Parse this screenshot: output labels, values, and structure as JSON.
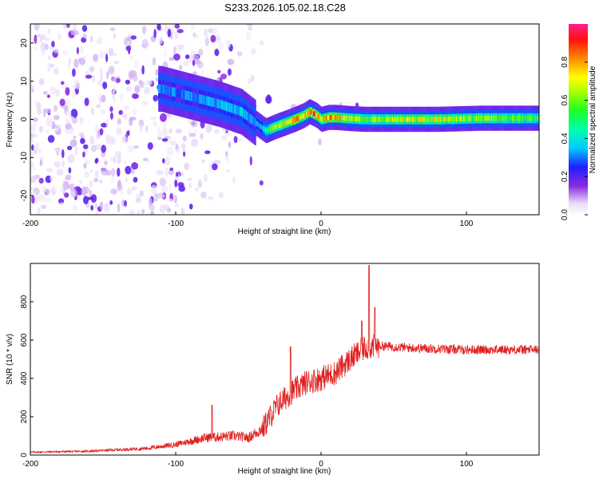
{
  "title": "S233.2026.105.02.18.C28",
  "chart_data": [
    {
      "type": "heatmap",
      "xlabel": "Height of straight line (km)",
      "ylabel": "Frequency (Hz)",
      "xlim": [
        -200,
        150
      ],
      "ylim": [
        -25,
        25
      ],
      "xticks": [
        -200,
        -100,
        0,
        100
      ],
      "yticks": [
        20,
        10,
        0,
        -10,
        -20
      ],
      "colorbar": {
        "label": "Normalized spectral amplitude",
        "range": [
          0,
          1
        ],
        "ticks": [
          0.0,
          0.2,
          0.4,
          0.6,
          0.8
        ]
      },
      "ridge": {
        "x": [
          -110,
          -90,
          -70,
          -55,
          -45,
          -38,
          -32,
          -25,
          -18,
          -12,
          -8,
          -3,
          0,
          5,
          10,
          20,
          30,
          50,
          80,
          110,
          150
        ],
        "freq": [
          8,
          6,
          4,
          2,
          -1,
          -3,
          -2,
          -1,
          0,
          1,
          2,
          1,
          0,
          0.5,
          0.5,
          0.2,
          0,
          0,
          0,
          0.3,
          0.3
        ],
        "amplitude": [
          0.3,
          0.3,
          0.35,
          0.35,
          0.3,
          0.45,
          0.6,
          0.7,
          0.8,
          0.75,
          0.85,
          0.8,
          0.7,
          0.8,
          0.75,
          0.65,
          0.6,
          0.65,
          0.7,
          0.6,
          0.55
        ]
      }
    },
    {
      "type": "line",
      "xlabel": "Height of straight line (km)",
      "ylabel": "SNR (10 * v/v)",
      "xlim": [
        -200,
        150
      ],
      "ylim": [
        0,
        1000
      ],
      "xticks": [
        -200,
        -100,
        0,
        100
      ],
      "yticks": [
        0,
        200,
        400,
        600,
        800
      ],
      "color": "#e02020",
      "envelope": {
        "x": [
          -200,
          -160,
          -120,
          -100,
          -80,
          -60,
          -50,
          -40,
          -30,
          -20,
          -10,
          0,
          10,
          20,
          30,
          40,
          60,
          100,
          150
        ],
        "snr": [
          15,
          20,
          35,
          55,
          90,
          100,
          90,
          140,
          260,
          330,
          380,
          400,
          430,
          500,
          560,
          570,
          560,
          550,
          550
        ]
      },
      "spikes": [
        {
          "x": -75,
          "snr": 260
        },
        {
          "x": -21,
          "snr": 565
        },
        {
          "x": 33,
          "snr": 990
        },
        {
          "x": 37,
          "snr": 770
        },
        {
          "x": 28,
          "snr": 700
        }
      ]
    }
  ]
}
